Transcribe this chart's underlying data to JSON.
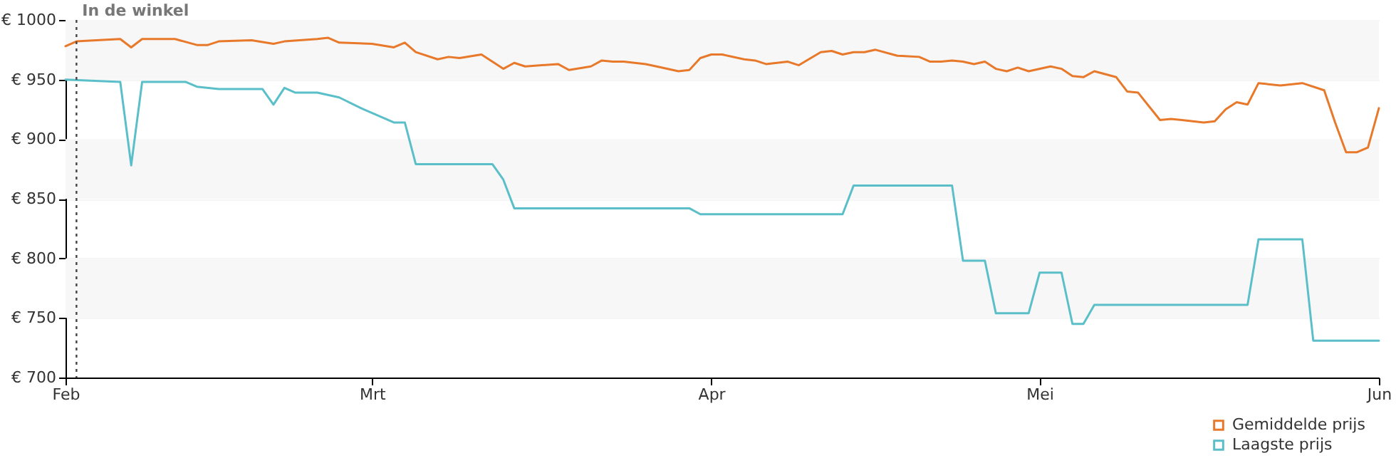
{
  "chart_data": {
    "type": "line",
    "xlim": [
      "--02-01",
      "--06-01"
    ],
    "xticks": [
      {
        "value": "--02-01",
        "label": "Feb"
      },
      {
        "value": "--03-01",
        "label": "Mrt"
      },
      {
        "value": "--04-01",
        "label": "Apr"
      },
      {
        "value": "--05-01",
        "label": "Mei"
      },
      {
        "value": "--06-01",
        "label": "Jun"
      }
    ],
    "ylim": [
      700,
      1000
    ],
    "yticks": [
      {
        "value": 700,
        "label": "€ 700"
      },
      {
        "value": 750,
        "label": "€ 750"
      },
      {
        "value": 800,
        "label": "€ 800"
      },
      {
        "value": 850,
        "label": "€ 850"
      },
      {
        "value": 900,
        "label": "€ 900"
      },
      {
        "value": 950,
        "label": "€ 950"
      },
      {
        "value": 1000,
        "label": "€ 1000"
      }
    ],
    "grid": "y",
    "legend": "bottom right",
    "marker": "none",
    "line_style": "solid",
    "ref_lines": [
      {
        "axis": "x",
        "value": "--02-02",
        "label": "In de winkel",
        "line_style": "dotted",
        "color": "#444444"
      }
    ],
    "series": [
      {
        "name": "Gemiddelde prijs",
        "color": "#e8792b",
        "x": [
          "--02-01",
          "--02-02",
          "--02-06",
          "--02-07",
          "--02-08",
          "--02-11",
          "--02-13",
          "--02-14",
          "--02-15",
          "--02-18",
          "--02-20",
          "--02-21",
          "--02-24",
          "--02-25",
          "--02-26",
          "--03-01",
          "--03-03",
          "--03-04",
          "--03-05",
          "--03-07",
          "--03-08",
          "--03-09",
          "--03-11",
          "--03-12",
          "--03-13",
          "--03-14",
          "--03-15",
          "--03-18",
          "--03-19",
          "--03-21",
          "--03-22",
          "--03-23",
          "--03-24",
          "--03-26",
          "--03-27",
          "--03-29",
          "--03-30",
          "--03-31",
          "--04-01",
          "--04-02",
          "--04-04",
          "--04-05",
          "--04-06",
          "--04-08",
          "--04-09",
          "--04-11",
          "--04-12",
          "--04-13",
          "--04-14",
          "--04-15",
          "--04-16",
          "--04-18",
          "--04-20",
          "--04-21",
          "--04-22",
          "--04-23",
          "--04-24",
          "--04-25",
          "--04-26",
          "--04-27",
          "--04-28",
          "--04-29",
          "--04-30",
          "--05-02",
          "--05-03",
          "--05-04",
          "--05-05",
          "--05-06",
          "--05-08",
          "--05-09",
          "--05-10",
          "--05-12",
          "--05-13",
          "--05-14",
          "--05-16",
          "--05-17",
          "--05-18",
          "--05-19",
          "--05-20",
          "--05-21",
          "--05-23",
          "--05-25",
          "--05-27",
          "--05-28",
          "--05-29",
          "--05-30",
          "--05-31",
          "--06-01"
        ],
        "values": [
          978,
          982,
          984,
          977,
          984,
          984,
          979,
          979,
          982,
          983,
          980,
          982,
          984,
          985,
          981,
          980,
          977,
          981,
          973,
          967,
          969,
          968,
          971,
          965,
          959,
          964,
          961,
          963,
          958,
          961,
          966,
          965,
          965,
          963,
          961,
          957,
          958,
          968,
          971,
          971,
          967,
          966,
          963,
          965,
          962,
          973,
          974,
          971,
          973,
          973,
          975,
          970,
          969,
          965,
          965,
          966,
          965,
          963,
          965,
          959,
          957,
          960,
          957,
          961,
          959,
          953,
          952,
          957,
          952,
          940,
          939,
          916,
          917,
          916,
          914,
          915,
          925,
          931,
          929,
          947,
          945,
          947,
          941,
          914,
          889,
          889,
          893,
          926
        ]
      },
      {
        "name": "Laagste prijs",
        "color": "#5bbfc9",
        "x": [
          "--02-01",
          "--02-06",
          "--02-07",
          "--02-08",
          "--02-12",
          "--02-13",
          "--02-15",
          "--02-19",
          "--02-20",
          "--02-21",
          "--02-22",
          "--02-24",
          "--02-26",
          "--02-28",
          "--03-03",
          "--03-04",
          "--03-05",
          "--03-12",
          "--03-13",
          "--03-14",
          "--03-30",
          "--03-31",
          "--04-13",
          "--04-14",
          "--04-23",
          "--04-24",
          "--04-26",
          "--04-27",
          "--04-30",
          "--05-01",
          "--05-03",
          "--05-04",
          "--05-05",
          "--05-06",
          "--05-20",
          "--05-21",
          "--05-25",
          "--05-26",
          "--06-01"
        ],
        "values": [
          950,
          948,
          878,
          948,
          948,
          944,
          942,
          942,
          929,
          943,
          939,
          939,
          935,
          926,
          914,
          914,
          879,
          879,
          866,
          842,
          842,
          837,
          837,
          861,
          861,
          798,
          798,
          754,
          754,
          788,
          788,
          745,
          745,
          761,
          761,
          816,
          816,
          731,
          731
        ]
      }
    ]
  }
}
